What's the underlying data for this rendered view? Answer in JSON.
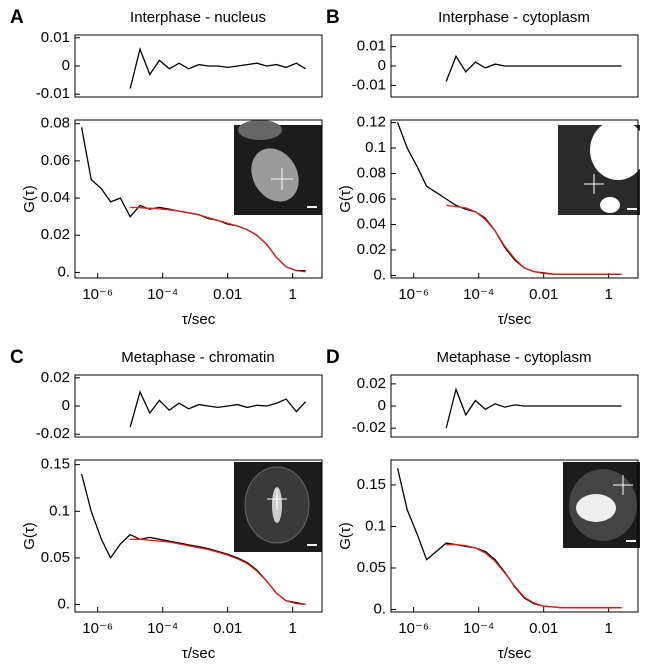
{
  "chart_data": [
    {
      "type": "line",
      "panel": "A",
      "title": "Interphase - nucleus",
      "x_scale": "log",
      "x": [
        3.2e-07,
        6.3e-07,
        1.3e-06,
        2.5e-06,
        5e-06,
        1e-05,
        2e-05,
        4e-05,
        7.9e-05,
        0.00016,
        0.00032,
        0.00063,
        0.0013,
        0.0025,
        0.005,
        0.01,
        0.02,
        0.04,
        0.079,
        0.16,
        0.32,
        0.63,
        1.3,
        2.5
      ],
      "xlim": [
        2e-07,
        8
      ],
      "ylim": [
        -0.011,
        0.011
      ],
      "yticks": [
        -0.01,
        0,
        0.01
      ],
      "series": [
        {
          "color": "#000000",
          "values": [
            null,
            null,
            null,
            null,
            null,
            -0.008,
            0.006,
            -0.003,
            0.002,
            -0.001,
            0.001,
            -0.001,
            0.0005,
            0,
            0,
            -0.0005,
            0,
            0.0005,
            0.001,
            0,
            0.0005,
            -0.0005,
            0.001,
            -0.001
          ]
        }
      ]
    },
    {
      "type": "line",
      "x_label": "τ/sec",
      "y_label": "G(τ)",
      "x_scale": "log",
      "x": [
        3.2e-07,
        6.3e-07,
        1.3e-06,
        2.5e-06,
        5e-06,
        1e-05,
        2e-05,
        4e-05,
        7.9e-05,
        0.00016,
        0.00032,
        0.00063,
        0.0013,
        0.0025,
        0.005,
        0.01,
        0.02,
        0.04,
        0.079,
        0.16,
        0.32,
        0.63,
        1.3,
        2.5
      ],
      "xlim": [
        2e-07,
        8
      ],
      "xticks": [
        {
          "value": 1e-06,
          "label": "10⁻⁶"
        },
        {
          "value": 0.0001,
          "label": "10⁻⁴"
        },
        0.01,
        1
      ],
      "ylim": [
        -0.003,
        0.082
      ],
      "yticks": [
        {
          "value": 0,
          "label": "0."
        },
        0.02,
        0.04,
        0.06,
        0.08
      ],
      "series": [
        {
          "color": "#000000",
          "values": [
            0.078,
            0.05,
            0.045,
            0.038,
            0.04,
            0.03,
            0.036,
            0.034,
            0.035,
            0.034,
            0.033,
            0.032,
            0.031,
            0.029,
            0.028,
            0.026,
            0.025,
            0.023,
            0.02,
            0.015,
            0.008,
            0.003,
            0.001,
            0.001
          ]
        },
        {
          "color": "#e0211b",
          "values": [
            null,
            null,
            null,
            null,
            null,
            0.035,
            0.0348,
            0.0345,
            0.0342,
            0.0337,
            0.033,
            0.0322,
            0.031,
            0.0295,
            0.028,
            0.0265,
            0.025,
            0.023,
            0.02,
            0.015,
            0.008,
            0.003,
            0.001,
            0.0003
          ]
        }
      ]
    },
    {
      "type": "line",
      "panel": "B",
      "title": "Interphase - cytoplasm",
      "x_scale": "log",
      "x": [
        3.2e-07,
        6.3e-07,
        1.3e-06,
        2.5e-06,
        5e-06,
        1e-05,
        2e-05,
        4e-05,
        7.9e-05,
        0.00016,
        0.00032,
        0.00063,
        0.0013,
        0.0025,
        0.005,
        0.01,
        0.02,
        0.04,
        0.079,
        0.16,
        0.32,
        0.63,
        1.3,
        2.5
      ],
      "xlim": [
        2e-07,
        8
      ],
      "ylim": [
        -0.016,
        0.016
      ],
      "yticks": [
        -0.01,
        0,
        0.01
      ],
      "series": [
        {
          "color": "#000000",
          "values": [
            null,
            null,
            null,
            null,
            null,
            -0.008,
            0.005,
            -0.003,
            0.002,
            -0.001,
            0.001,
            0,
            0,
            0,
            0,
            0,
            0,
            0,
            0,
            0,
            0,
            0,
            0,
            0
          ]
        }
      ]
    },
    {
      "type": "line",
      "x_label": "τ/sec",
      "y_label": "G(τ)",
      "x_scale": "log",
      "x": [
        3.2e-07,
        6.3e-07,
        1.3e-06,
        2.5e-06,
        5e-06,
        1e-05,
        2e-05,
        4e-05,
        7.9e-05,
        0.00016,
        0.00032,
        0.00063,
        0.0013,
        0.0025,
        0.005,
        0.01,
        0.02,
        0.04,
        0.079,
        0.16,
        0.32,
        0.63,
        1.3,
        2.5
      ],
      "xlim": [
        2e-07,
        8
      ],
      "xticks": [
        {
          "value": 1e-06,
          "label": "10⁻⁶"
        },
        {
          "value": 0.0001,
          "label": "10⁻⁴"
        },
        0.01,
        1
      ],
      "ylim": [
        -0.002,
        0.122
      ],
      "yticks": [
        {
          "value": 0,
          "label": "0."
        },
        0.02,
        0.04,
        0.06,
        0.08,
        0.1,
        0.12
      ],
      "series": [
        {
          "color": "#000000",
          "values": [
            0.12,
            0.1,
            0.085,
            0.07,
            0.065,
            0.06,
            0.055,
            0.052,
            0.05,
            0.045,
            0.035,
            0.022,
            0.012,
            0.006,
            0.003,
            0.002,
            0.001,
            0.001,
            0.001,
            0.001,
            0.001,
            0.001,
            0.001,
            0.001
          ]
        },
        {
          "color": "#e0211b",
          "values": [
            null,
            null,
            null,
            null,
            null,
            0.055,
            0.054,
            0.053,
            0.05,
            0.044,
            0.035,
            0.023,
            0.013,
            0.006,
            0.003,
            0.0015,
            0.001,
            0.001,
            0.001,
            0.001,
            0.001,
            0.001,
            0.001,
            0.001
          ]
        }
      ]
    },
    {
      "type": "line",
      "panel": "C",
      "title": "Metaphase - chromatin",
      "x_scale": "log",
      "x": [
        3.2e-07,
        6.3e-07,
        1.3e-06,
        2.5e-06,
        5e-06,
        1e-05,
        2e-05,
        4e-05,
        7.9e-05,
        0.00016,
        0.00032,
        0.00063,
        0.0013,
        0.0025,
        0.005,
        0.01,
        0.02,
        0.04,
        0.079,
        0.16,
        0.32,
        0.63,
        1.3,
        2.5
      ],
      "xlim": [
        2e-07,
        8
      ],
      "ylim": [
        -0.022,
        0.022
      ],
      "yticks": [
        -0.02,
        0,
        0.02
      ],
      "series": [
        {
          "color": "#000000",
          "values": [
            null,
            null,
            null,
            null,
            null,
            -0.015,
            0.01,
            -0.005,
            0.004,
            -0.003,
            0.002,
            -0.002,
            0.001,
            0,
            -0.001,
            0,
            0.001,
            -0.001,
            0.0005,
            0,
            0.002,
            0.005,
            -0.004,
            0.003
          ]
        }
      ]
    },
    {
      "type": "line",
      "x_label": "τ/sec",
      "y_label": "G(τ)",
      "x_scale": "log",
      "x": [
        3.2e-07,
        6.3e-07,
        1.3e-06,
        2.5e-06,
        5e-06,
        1e-05,
        2e-05,
        4e-05,
        7.9e-05,
        0.00016,
        0.00032,
        0.00063,
        0.0013,
        0.0025,
        0.005,
        0.01,
        0.02,
        0.04,
        0.079,
        0.16,
        0.32,
        0.63,
        1.3,
        2.5
      ],
      "xlim": [
        2e-07,
        8
      ],
      "xticks": [
        {
          "value": 1e-06,
          "label": "10⁻⁶"
        },
        {
          "value": 0.0001,
          "label": "10⁻⁴"
        },
        0.01,
        1
      ],
      "ylim": [
        -0.008,
        0.155
      ],
      "yticks": [
        {
          "value": 0,
          "label": "0."
        },
        0.05,
        0.1,
        0.15
      ],
      "series": [
        {
          "color": "#000000",
          "values": [
            0.14,
            0.1,
            0.07,
            0.05,
            0.065,
            0.075,
            0.07,
            0.072,
            0.07,
            0.068,
            0.066,
            0.064,
            0.062,
            0.06,
            0.057,
            0.054,
            0.05,
            0.045,
            0.037,
            0.025,
            0.012,
            0.004,
            0.002,
            0
          ]
        },
        {
          "color": "#e0211b",
          "values": [
            null,
            null,
            null,
            null,
            null,
            0.07,
            0.07,
            0.069,
            0.068,
            0.067,
            0.065,
            0.063,
            0.061,
            0.059,
            0.056,
            0.053,
            0.049,
            0.044,
            0.036,
            0.025,
            0.012,
            0.004,
            0.001,
            0
          ]
        }
      ]
    },
    {
      "type": "line",
      "panel": "D",
      "title": "Metaphase - cytoplasm",
      "x_scale": "log",
      "x": [
        3.2e-07,
        6.3e-07,
        1.3e-06,
        2.5e-06,
        5e-06,
        1e-05,
        2e-05,
        4e-05,
        7.9e-05,
        0.00016,
        0.00032,
        0.00063,
        0.0013,
        0.0025,
        0.005,
        0.01,
        0.02,
        0.04,
        0.079,
        0.16,
        0.32,
        0.63,
        1.3,
        2.5
      ],
      "xlim": [
        2e-07,
        8
      ],
      "ylim": [
        -0.028,
        0.028
      ],
      "yticks": [
        -0.02,
        0,
        0.02
      ],
      "series": [
        {
          "color": "#000000",
          "values": [
            null,
            null,
            null,
            null,
            null,
            -0.02,
            0.015,
            -0.008,
            0.005,
            -0.003,
            0.002,
            -0.001,
            0.001,
            0,
            0,
            0,
            0,
            0,
            0,
            0,
            0,
            0,
            0,
            0
          ]
        }
      ]
    },
    {
      "type": "line",
      "x_label": "τ/sec",
      "y_label": "G(τ)",
      "x_scale": "log",
      "x": [
        3.2e-07,
        6.3e-07,
        1.3e-06,
        2.5e-06,
        5e-06,
        1e-05,
        2e-05,
        4e-05,
        7.9e-05,
        0.00016,
        0.00032,
        0.00063,
        0.0013,
        0.0025,
        0.005,
        0.01,
        0.02,
        0.04,
        0.079,
        0.16,
        0.32,
        0.63,
        1.3,
        2.5
      ],
      "xlim": [
        2e-07,
        8
      ],
      "xticks": [
        {
          "value": 1e-06,
          "label": "10⁻⁶"
        },
        {
          "value": 0.0001,
          "label": "10⁻⁴"
        },
        0.01,
        1
      ],
      "ylim": [
        -0.003,
        0.18
      ],
      "yticks": [
        {
          "value": 0,
          "label": "0."
        },
        0.05,
        0.1,
        0.15
      ],
      "series": [
        {
          "color": "#000000",
          "values": [
            0.17,
            0.12,
            0.09,
            0.06,
            0.07,
            0.08,
            0.078,
            0.076,
            0.074,
            0.07,
            0.06,
            0.045,
            0.027,
            0.014,
            0.007,
            0.004,
            0.003,
            0.002,
            0.002,
            0.002,
            0.002,
            0.002,
            0.002,
            0.002
          ]
        },
        {
          "color": "#e0211b",
          "values": [
            null,
            null,
            null,
            null,
            null,
            0.078,
            0.078,
            0.077,
            0.074,
            0.068,
            0.058,
            0.044,
            0.028,
            0.015,
            0.008,
            0.004,
            0.003,
            0.002,
            0.002,
            0.002,
            0.002,
            0.002,
            0.002,
            0.002
          ]
        }
      ]
    }
  ]
}
